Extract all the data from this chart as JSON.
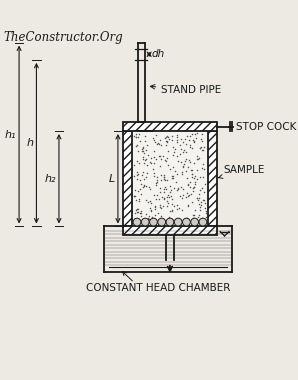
{
  "bg_color": "#ede9e3",
  "line_color": "#1a1a1a",
  "title_text": "TheConstructor.Org",
  "title_fontsize": 8.5,
  "labels": {
    "stand_pipe": "STAND PIPE",
    "stop_cock": "STOP COCK",
    "sample": "SAMPLE",
    "constant_head": "CONSTANT HEAD CHAMBER",
    "dh": "dh",
    "h1": "h₁",
    "h": "h",
    "h2": "h₂",
    "L": "L"
  },
  "figsize": [
    2.98,
    3.8
  ],
  "dpi": 100
}
